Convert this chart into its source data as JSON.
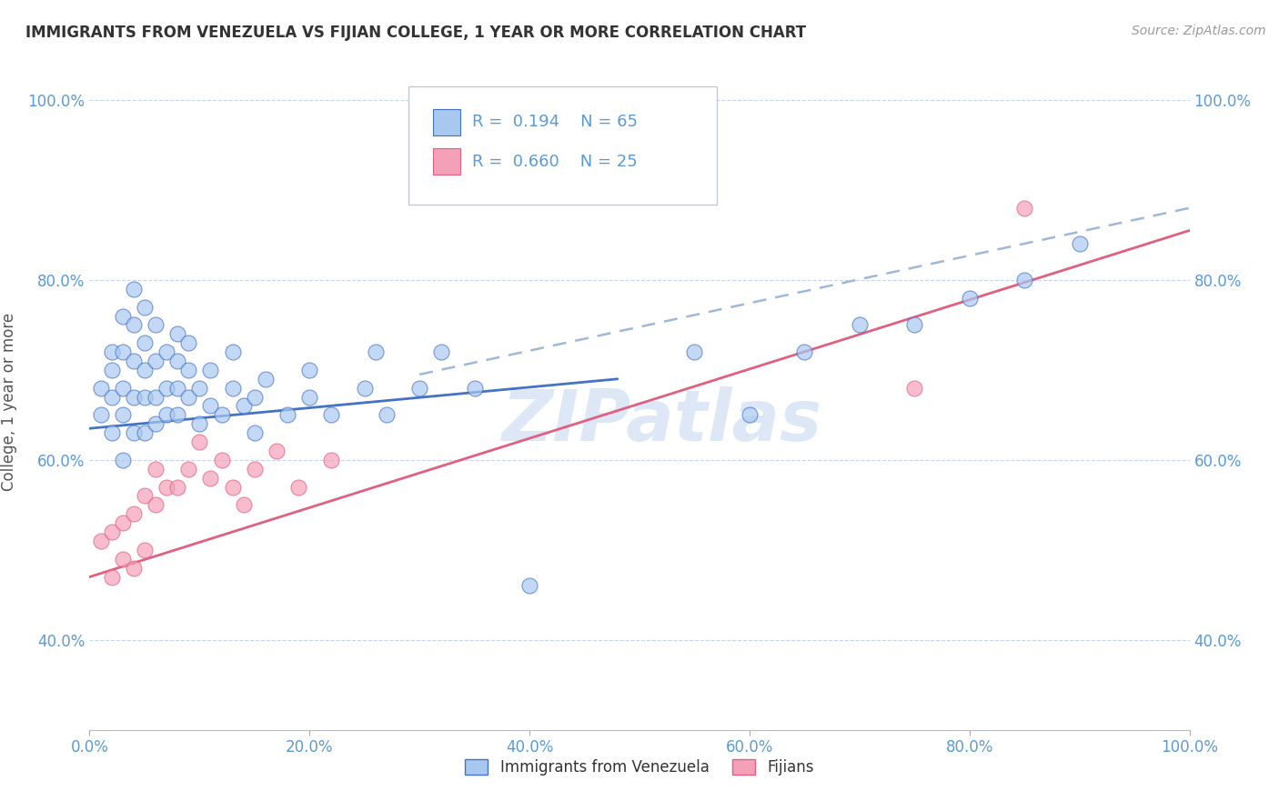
{
  "title": "IMMIGRANTS FROM VENEZUELA VS FIJIAN COLLEGE, 1 YEAR OR MORE CORRELATION CHART",
  "source": "Source: ZipAtlas.com",
  "xlabel": "",
  "ylabel": "College, 1 year or more",
  "xlim": [
    0.0,
    1.0
  ],
  "ylim": [
    0.3,
    1.03
  ],
  "xticks": [
    0.0,
    0.2,
    0.4,
    0.6,
    0.8,
    1.0
  ],
  "xtick_labels": [
    "0.0%",
    "20.0%",
    "40.0%",
    "60.0%",
    "80.0%",
    "100.0%"
  ],
  "yticks": [
    0.4,
    0.6,
    0.8,
    1.0
  ],
  "ytick_labels": [
    "40.0%",
    "60.0%",
    "80.0%",
    "100.0%"
  ],
  "R_blue": 0.194,
  "N_blue": 65,
  "R_pink": 0.66,
  "N_pink": 25,
  "blue_color": "#A8C8F0",
  "pink_color": "#F4A0B8",
  "blue_line_color": "#4472C4",
  "pink_line_color": "#E06080",
  "dashed_line_color": "#A0B8D8",
  "legend_label_blue": "Immigrants from Venezuela",
  "legend_label_pink": "Fijians",
  "blue_scatter_x": [
    0.01,
    0.01,
    0.02,
    0.02,
    0.02,
    0.02,
    0.03,
    0.03,
    0.03,
    0.03,
    0.03,
    0.04,
    0.04,
    0.04,
    0.04,
    0.04,
    0.05,
    0.05,
    0.05,
    0.05,
    0.05,
    0.06,
    0.06,
    0.06,
    0.06,
    0.07,
    0.07,
    0.07,
    0.08,
    0.08,
    0.08,
    0.08,
    0.09,
    0.09,
    0.09,
    0.1,
    0.1,
    0.11,
    0.11,
    0.12,
    0.13,
    0.13,
    0.14,
    0.15,
    0.15,
    0.16,
    0.18,
    0.2,
    0.2,
    0.22,
    0.25,
    0.26,
    0.27,
    0.3,
    0.32,
    0.35,
    0.4,
    0.55,
    0.6,
    0.65,
    0.7,
    0.75,
    0.8,
    0.85,
    0.9
  ],
  "blue_scatter_y": [
    0.65,
    0.68,
    0.63,
    0.67,
    0.7,
    0.72,
    0.6,
    0.65,
    0.68,
    0.72,
    0.76,
    0.63,
    0.67,
    0.71,
    0.75,
    0.79,
    0.63,
    0.67,
    0.7,
    0.73,
    0.77,
    0.64,
    0.67,
    0.71,
    0.75,
    0.65,
    0.68,
    0.72,
    0.65,
    0.68,
    0.71,
    0.74,
    0.67,
    0.7,
    0.73,
    0.64,
    0.68,
    0.66,
    0.7,
    0.65,
    0.68,
    0.72,
    0.66,
    0.63,
    0.67,
    0.69,
    0.65,
    0.67,
    0.7,
    0.65,
    0.68,
    0.72,
    0.65,
    0.68,
    0.72,
    0.68,
    0.46,
    0.72,
    0.65,
    0.72,
    0.75,
    0.75,
    0.78,
    0.8,
    0.84
  ],
  "pink_scatter_x": [
    0.01,
    0.02,
    0.02,
    0.03,
    0.03,
    0.04,
    0.04,
    0.05,
    0.05,
    0.06,
    0.06,
    0.07,
    0.08,
    0.09,
    0.1,
    0.11,
    0.12,
    0.13,
    0.14,
    0.15,
    0.17,
    0.19,
    0.22,
    0.75,
    0.85
  ],
  "pink_scatter_y": [
    0.51,
    0.47,
    0.52,
    0.49,
    0.53,
    0.48,
    0.54,
    0.5,
    0.56,
    0.55,
    0.59,
    0.57,
    0.57,
    0.59,
    0.62,
    0.58,
    0.6,
    0.57,
    0.55,
    0.59,
    0.61,
    0.57,
    0.6,
    0.68,
    0.88
  ],
  "blue_trend_x0": 0.0,
  "blue_trend_x1": 0.48,
  "blue_trend_y0": 0.635,
  "blue_trend_y1": 0.69,
  "pink_trend_x0": 0.0,
  "pink_trend_x1": 1.0,
  "pink_trend_y0": 0.47,
  "pink_trend_y1": 0.855,
  "dashed_trend_x0": 0.3,
  "dashed_trend_x1": 1.0,
  "dashed_trend_y0": 0.695,
  "dashed_trend_y1": 0.88,
  "watermark_text": "ZIPatlas",
  "background_color": "#FFFFFF",
  "grid_color": "#C8D4E8"
}
